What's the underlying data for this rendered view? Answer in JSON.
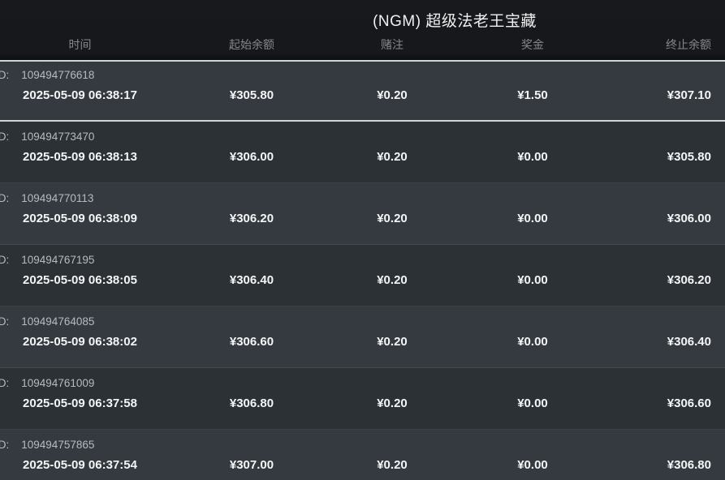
{
  "title": "(NGM) 超级法老王宝藏",
  "columns": {
    "time": "时间",
    "start_balance": "起始余额",
    "bet": "赌注",
    "prize": "奖金",
    "end_balance": "终止余额"
  },
  "labels": {
    "id_prefix": "ID:"
  },
  "colors": {
    "header_bg": "#17191c",
    "row_light": "#353a40",
    "row_dark": "#2c3136",
    "highlight_border": "#d2d4d6",
    "title_text": "#eef0f1",
    "column_header_text": "#84888c",
    "id_text": "#b6bbc0",
    "value_text": "#f4f5f6"
  },
  "rows": [
    {
      "id": "109494776618",
      "time": "2025-05-09 06:38:17",
      "start_balance": "¥305.80",
      "bet": "¥0.20",
      "prize": "¥1.50",
      "end_balance": "¥307.10",
      "highlighted": true
    },
    {
      "id": "109494773470",
      "time": "2025-05-09 06:38:13",
      "start_balance": "¥306.00",
      "bet": "¥0.20",
      "prize": "¥0.00",
      "end_balance": "¥305.80",
      "highlighted": false
    },
    {
      "id": "109494770113",
      "time": "2025-05-09 06:38:09",
      "start_balance": "¥306.20",
      "bet": "¥0.20",
      "prize": "¥0.00",
      "end_balance": "¥306.00",
      "highlighted": false
    },
    {
      "id": "109494767195",
      "time": "2025-05-09 06:38:05",
      "start_balance": "¥306.40",
      "bet": "¥0.20",
      "prize": "¥0.00",
      "end_balance": "¥306.20",
      "highlighted": false
    },
    {
      "id": "109494764085",
      "time": "2025-05-09 06:38:02",
      "start_balance": "¥306.60",
      "bet": "¥0.20",
      "prize": "¥0.00",
      "end_balance": "¥306.40",
      "highlighted": false
    },
    {
      "id": "109494761009",
      "time": "2025-05-09 06:37:58",
      "start_balance": "¥306.80",
      "bet": "¥0.20",
      "prize": "¥0.00",
      "end_balance": "¥306.60",
      "highlighted": false
    },
    {
      "id": "109494757865",
      "time": "2025-05-09 06:37:54",
      "start_balance": "¥307.00",
      "bet": "¥0.20",
      "prize": "¥0.00",
      "end_balance": "¥306.80",
      "highlighted": false
    }
  ]
}
